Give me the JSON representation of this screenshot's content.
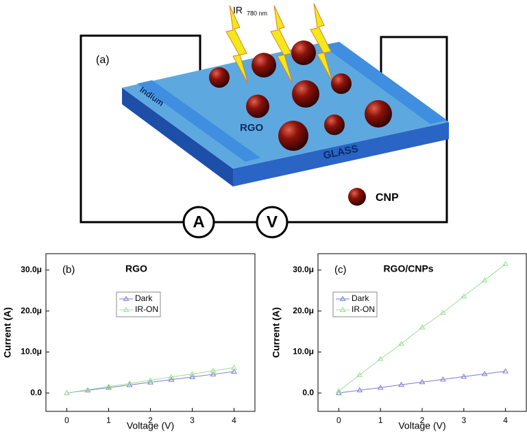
{
  "diagram": {
    "label": "(a)",
    "ir": "IR",
    "wavelength": "780 nm",
    "indium": "Indium",
    "rgo": "RGO",
    "glass": "GLASS",
    "cnp": "CNP",
    "ammeter": "A",
    "voltmeter": "V"
  },
  "chart_data": [
    {
      "type": "line",
      "panel_label": "(b)",
      "title": "RGO",
      "x_label": "Voltage (V)",
      "y_label": "Current (A)",
      "x": [
        0,
        0.5,
        1,
        1.5,
        2,
        2.5,
        3,
        3.5,
        4
      ],
      "series": [
        {
          "name": "Dark",
          "color": "#7a7ad6",
          "values": [
            0,
            6.5e-07,
            1.3e-06,
            1.95e-06,
            2.6e-06,
            3.25e-06,
            3.9e-06,
            4.55e-06,
            5.2e-06
          ]
        },
        {
          "name": "IR-ON",
          "color": "#98e098",
          "values": [
            0,
            7.8e-07,
            1.55e-06,
            2.3e-06,
            3.1e-06,
            3.9e-06,
            4.65e-06,
            5.4e-06,
            6.2e-06
          ]
        }
      ],
      "xlim": [
        -0.5,
        4.5
      ],
      "xticks": [
        0,
        1,
        2,
        3,
        4
      ],
      "ylim": [
        -4.5e-06,
        3.4e-05
      ],
      "yticks": [
        {
          "value": 0,
          "label": "0.0"
        },
        {
          "value": 1e-05,
          "label": "10.0μ"
        },
        {
          "value": 2e-05,
          "label": "20.0μ"
        },
        {
          "value": 3e-05,
          "label": "30.0μ"
        }
      ]
    },
    {
      "type": "line",
      "panel_label": "(c)",
      "title": "RGO/CNPs",
      "x_label": "Voltage (V)",
      "y_label": "Current (A)",
      "x": [
        0,
        0.5,
        1,
        1.5,
        2,
        2.5,
        3,
        3.5,
        4
      ],
      "series": [
        {
          "name": "Dark",
          "color": "#7a7ad6",
          "values": [
            0,
            6.6e-07,
            1.3e-06,
            2e-06,
            2.65e-06,
            3.3e-06,
            4e-06,
            4.65e-06,
            5.3e-06
          ]
        },
        {
          "name": "IR-ON",
          "color": "#98e098",
          "values": [
            5e-07,
            4.4e-06,
            8.3e-06,
            1.2e-05,
            1.6e-05,
            1.96e-05,
            2.36e-05,
            2.75e-05,
            3.15e-05
          ]
        }
      ],
      "xlim": [
        -0.5,
        4.5
      ],
      "xticks": [
        0,
        1,
        2,
        3,
        4
      ],
      "ylim": [
        -4.5e-06,
        3.4e-05
      ],
      "yticks": [
        {
          "value": 0,
          "label": "0.0"
        },
        {
          "value": 1e-05,
          "label": "10.0μ"
        },
        {
          "value": 2e-05,
          "label": "20.0μ"
        },
        {
          "value": 3e-05,
          "label": "30.0μ"
        }
      ]
    }
  ]
}
